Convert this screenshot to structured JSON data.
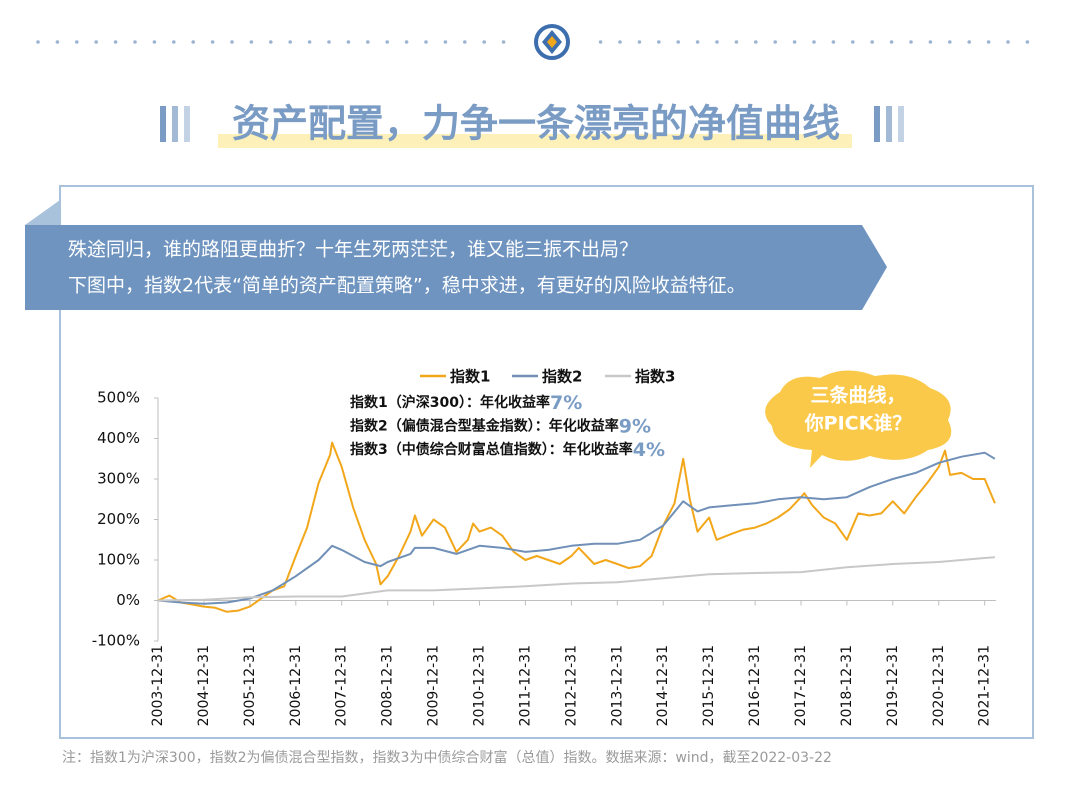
{
  "header": {
    "title": "资产配置，力争一条漂亮的净值曲线"
  },
  "banner": {
    "lines": [
      "殊途同归，谁的路阻更曲折？十年生死两茫茫，谁又能三振不出局？",
      "下图中，指数2代表“简单的资产配置策略”，稳中求进，有更好的风险收益特征。"
    ]
  },
  "bubble": {
    "lines": [
      "三条曲线，",
      "你PICK谁？"
    ]
  },
  "footnote": "注：指数1为沪深300，指数2为偏债混合型指数，指数3为中债综合财富（总值）指数。数据来源：wind，截至2022-03-22",
  "chart_data": {
    "type": "line",
    "annotations": [
      {
        "text": "指数1（沪深300）：年化收益率",
        "rate": "7%"
      },
      {
        "text": "指数2（偏债混合型基金指数）：年化收益率",
        "rate": "9%"
      },
      {
        "text": "指数3（中债综合财富总值指数）：年化收益率",
        "rate": "4%"
      }
    ],
    "xlim": [
      "2003-12-31",
      "2022-03-31"
    ],
    "xticks": [
      "2003-12-31",
      "2004-12-31",
      "2005-12-31",
      "2006-12-31",
      "2007-12-31",
      "2008-12-31",
      "2009-12-31",
      "2010-12-31",
      "2011-12-31",
      "2012-12-31",
      "2013-12-31",
      "2014-12-31",
      "2015-12-31",
      "2016-12-31",
      "2017-12-31",
      "2018-12-31",
      "2019-12-31",
      "2020-12-31",
      "2021-12-31"
    ],
    "ylim": [
      -100,
      500
    ],
    "yticks": [
      {
        "value": -100,
        "label": "-100%"
      },
      {
        "value": 0,
        "label": "0%"
      },
      {
        "value": 100,
        "label": "100%"
      },
      {
        "value": 200,
        "label": "200%"
      },
      {
        "value": 300,
        "label": "300%"
      },
      {
        "value": 400,
        "label": "400%"
      },
      {
        "value": 500,
        "label": "500%"
      }
    ],
    "legend": "top",
    "series": [
      {
        "name": "指数1",
        "color": "#f2a71b",
        "x": [
          "2003-12-31",
          "2004-03-31",
          "2004-06-30",
          "2004-09-30",
          "2004-12-31",
          "2005-03-31",
          "2005-06-30",
          "2005-09-30",
          "2005-12-31",
          "2006-03-31",
          "2006-06-30",
          "2006-09-30",
          "2006-12-31",
          "2007-03-31",
          "2007-06-30",
          "2007-09-30",
          "2007-10-16",
          "2007-12-31",
          "2008-03-31",
          "2008-06-30",
          "2008-09-30",
          "2008-11-04",
          "2008-12-31",
          "2009-03-31",
          "2009-06-30",
          "2009-08-04",
          "2009-09-30",
          "2009-12-31",
          "2010-03-31",
          "2010-06-30",
          "2010-09-30",
          "2010-11-10",
          "2010-12-31",
          "2011-03-31",
          "2011-06-30",
          "2011-09-30",
          "2011-12-31",
          "2012-03-31",
          "2012-06-30",
          "2012-09-30",
          "2012-12-31",
          "2013-02-28",
          "2013-06-30",
          "2013-09-30",
          "2013-12-31",
          "2014-03-31",
          "2014-06-30",
          "2014-09-30",
          "2014-12-31",
          "2015-03-31",
          "2015-06-08",
          "2015-07-31",
          "2015-09-30",
          "2015-12-31",
          "2016-02-29",
          "2016-06-30",
          "2016-09-30",
          "2016-12-31",
          "2017-03-31",
          "2017-06-30",
          "2017-09-30",
          "2017-12-31",
          "2018-01-26",
          "2018-03-31",
          "2018-06-30",
          "2018-09-30",
          "2018-12-31",
          "2019-03-31",
          "2019-06-30",
          "2019-09-30",
          "2019-12-31",
          "2020-03-31",
          "2020-06-30",
          "2020-09-30",
          "2020-12-31",
          "2021-02-18",
          "2021-03-31",
          "2021-06-30",
          "2021-09-30",
          "2021-12-31",
          "2022-03-22"
        ],
        "values": [
          0,
          12,
          -5,
          -10,
          -15,
          -18,
          -28,
          -25,
          -15,
          5,
          25,
          35,
          110,
          180,
          290,
          360,
          390,
          330,
          230,
          150,
          90,
          40,
          60,
          110,
          170,
          210,
          160,
          200,
          180,
          120,
          150,
          190,
          170,
          180,
          160,
          120,
          100,
          110,
          100,
          90,
          110,
          130,
          90,
          100,
          90,
          80,
          85,
          110,
          185,
          240,
          350,
          250,
          170,
          205,
          150,
          165,
          175,
          180,
          190,
          205,
          225,
          255,
          265,
          235,
          205,
          190,
          150,
          215,
          210,
          215,
          245,
          215,
          255,
          290,
          330,
          370,
          310,
          315,
          300,
          300,
          240
        ]
      },
      {
        "name": "指数2",
        "color": "#7090b8",
        "x": [
          "2003-12-31",
          "2004-06-30",
          "2004-12-31",
          "2005-06-30",
          "2005-12-31",
          "2006-06-30",
          "2006-12-31",
          "2007-06-30",
          "2007-10-16",
          "2007-12-31",
          "2008-06-30",
          "2008-11-04",
          "2008-12-31",
          "2009-06-30",
          "2009-08-04",
          "2009-12-31",
          "2010-06-30",
          "2010-12-31",
          "2011-06-30",
          "2011-12-31",
          "2012-06-30",
          "2012-12-31",
          "2013-06-30",
          "2013-12-31",
          "2014-06-30",
          "2014-12-31",
          "2015-06-08",
          "2015-09-30",
          "2015-12-31",
          "2016-06-30",
          "2016-12-31",
          "2017-06-30",
          "2017-12-31",
          "2018-06-30",
          "2018-12-31",
          "2019-06-30",
          "2019-12-31",
          "2020-06-30",
          "2020-12-31",
          "2021-06-30",
          "2021-12-31",
          "2022-03-22"
        ],
        "values": [
          0,
          -5,
          -8,
          -5,
          5,
          25,
          60,
          100,
          135,
          125,
          95,
          85,
          95,
          115,
          130,
          130,
          115,
          135,
          130,
          120,
          125,
          135,
          140,
          140,
          150,
          185,
          245,
          220,
          230,
          235,
          240,
          250,
          255,
          250,
          255,
          280,
          300,
          315,
          340,
          355,
          365,
          350
        ]
      },
      {
        "name": "指数3",
        "color": "#c8c8c8",
        "x": [
          "2003-12-31",
          "2004-12-31",
          "2005-12-31",
          "2006-12-31",
          "2007-12-31",
          "2008-12-31",
          "2009-12-31",
          "2010-12-31",
          "2011-12-31",
          "2012-12-31",
          "2013-12-31",
          "2014-12-31",
          "2015-12-31",
          "2016-12-31",
          "2017-12-31",
          "2018-12-31",
          "2019-12-31",
          "2020-12-31",
          "2021-12-31",
          "2022-03-22"
        ],
        "values": [
          0,
          2,
          8,
          10,
          10,
          25,
          25,
          30,
          35,
          42,
          45,
          55,
          65,
          68,
          70,
          82,
          90,
          95,
          105,
          107
        ]
      }
    ]
  }
}
